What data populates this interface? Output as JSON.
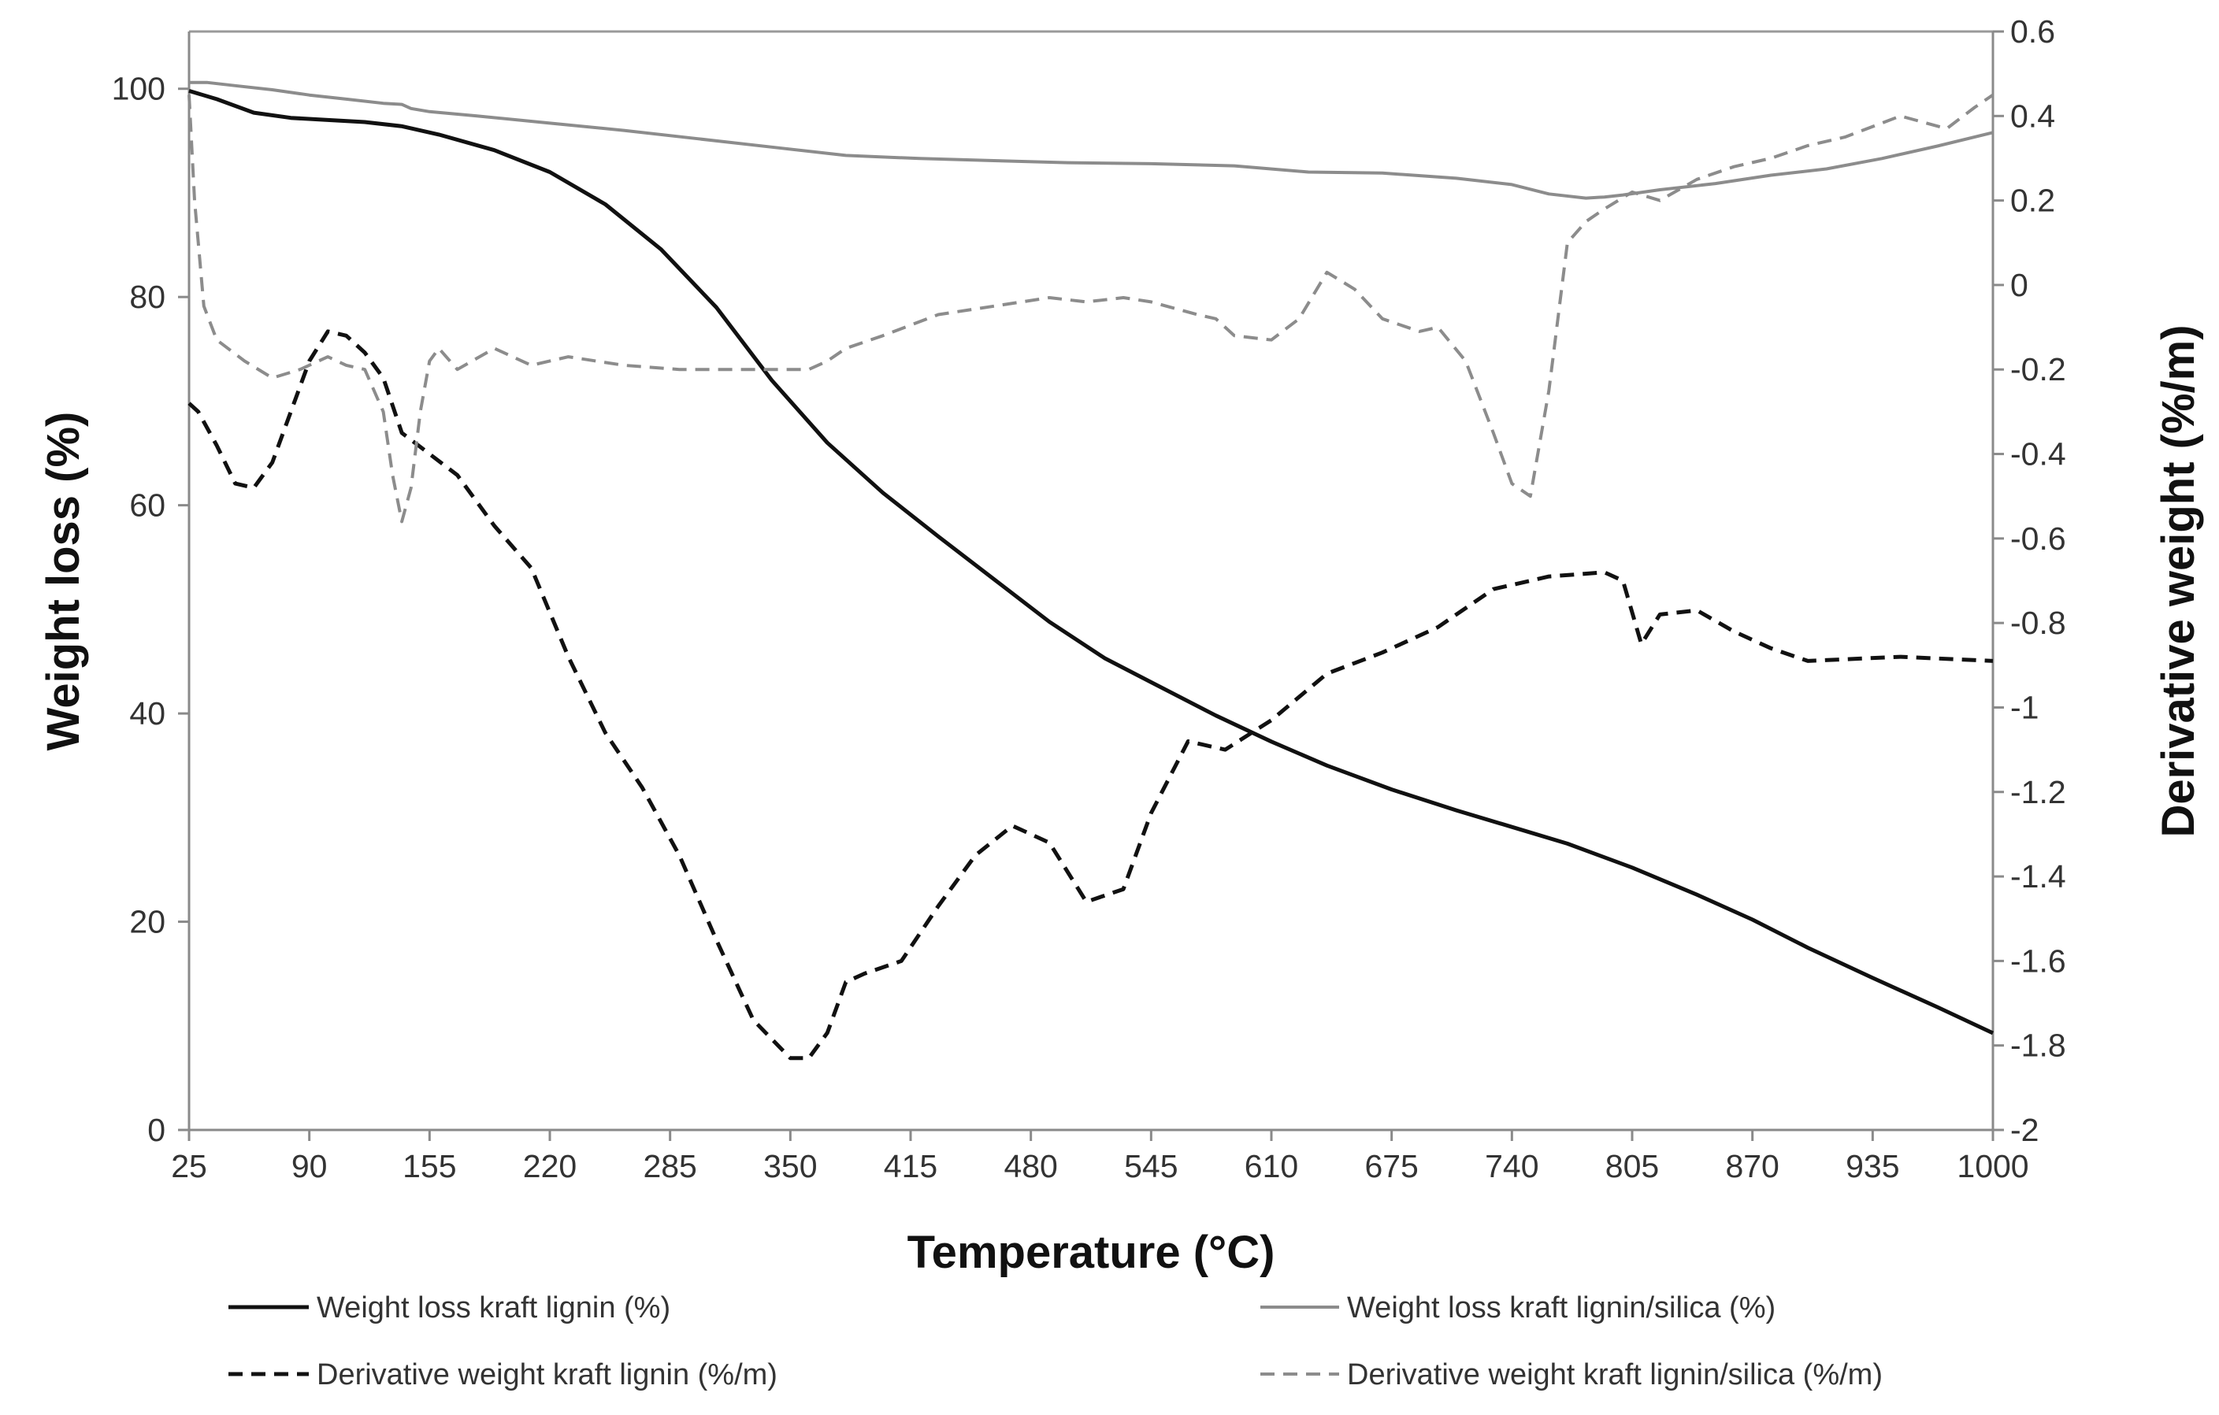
{
  "chart_data": {
    "type": "line",
    "title": "",
    "xlabel": "Temperature (°C)",
    "ylabel": "Weight loss (%)",
    "y2label": "Derivative weight (%/m)",
    "xlim": [
      25,
      1000
    ],
    "ylim": [
      0,
      105.5
    ],
    "y2lim": [
      -2,
      0.6
    ],
    "grid": false,
    "legend_position": "bottom",
    "x_ticks": [
      "25",
      "90",
      "155",
      "220",
      "285",
      "350",
      "415",
      "480",
      "545",
      "610",
      "675",
      "740",
      "805",
      "870",
      "935",
      "1000"
    ],
    "y_ticks": [
      "0",
      "20",
      "40",
      "60",
      "80",
      "100"
    ],
    "y2_ticks": [
      "-2",
      "-1.8",
      "-1.6",
      "-1.4",
      "-1.2",
      "-1",
      "-0.8",
      "-0.6",
      "-0.4",
      "-0.2",
      "0",
      "0.2",
      "0.4",
      "0.6"
    ],
    "series": [
      {
        "name": "Weight loss kraft lignin (%)",
        "axis": "left",
        "color": "#111111",
        "dash": "solid",
        "x": [
          25,
          40,
          60,
          80,
          100,
          120,
          140,
          160,
          190,
          220,
          250,
          280,
          310,
          340,
          370,
          400,
          430,
          460,
          490,
          520,
          545,
          580,
          610,
          640,
          675,
          710,
          740,
          770,
          805,
          840,
          870,
          900,
          935,
          970,
          1000
        ],
        "y": [
          99.8,
          99,
          97.7,
          97.2,
          97,
          96.8,
          96.4,
          95.6,
          94.1,
          92,
          88.9,
          84.6,
          79,
          72,
          66,
          61.2,
          57,
          52.9,
          48.8,
          45.3,
          43,
          39.8,
          37.3,
          35,
          32.7,
          30.7,
          29.1,
          27.5,
          25.2,
          22.6,
          20.2,
          17.5,
          14.6,
          11.8,
          9.3
        ]
      },
      {
        "name": "Weight loss kraft lignin/silica (%)",
        "axis": "left",
        "color": "#8c8c8c",
        "dash": "solid",
        "x": [
          25,
          35,
          50,
          70,
          90,
          110,
          130,
          140,
          145,
          155,
          180,
          220,
          260,
          300,
          340,
          380,
          420,
          460,
          500,
          545,
          590,
          630,
          670,
          710,
          740,
          760,
          780,
          790,
          800,
          820,
          850,
          880,
          910,
          940,
          970,
          1000
        ],
        "y": [
          100.6,
          100.6,
          100.3,
          99.9,
          99.4,
          99,
          98.6,
          98.5,
          98.1,
          97.8,
          97.4,
          96.7,
          96,
          95.2,
          94.4,
          93.6,
          93.3,
          93.1,
          92.9,
          92.8,
          92.6,
          92,
          91.9,
          91.4,
          90.8,
          89.9,
          89.5,
          89.6,
          89.8,
          90.3,
          90.9,
          91.7,
          92.3,
          93.3,
          94.5,
          95.8
        ]
      },
      {
        "name": "Derivative weight kraft lignin (%/m)",
        "axis": "right",
        "color": "#111111",
        "dash": "dashed",
        "x": [
          25,
          30,
          40,
          50,
          60,
          70,
          80,
          90,
          100,
          110,
          120,
          130,
          140,
          155,
          170,
          190,
          210,
          230,
          250,
          270,
          290,
          310,
          330,
          350,
          360,
          370,
          380,
          390,
          410,
          430,
          450,
          470,
          490,
          510,
          530,
          545,
          565,
          585,
          610,
          640,
          670,
          700,
          730,
          760,
          790,
          800,
          810,
          820,
          840,
          860,
          880,
          900,
          950,
          1000
        ],
        "y": [
          -0.28,
          -0.3,
          -0.38,
          -0.47,
          -0.48,
          -0.42,
          -0.3,
          -0.18,
          -0.11,
          -0.12,
          -0.16,
          -0.22,
          -0.35,
          -0.4,
          -0.45,
          -0.57,
          -0.67,
          -0.88,
          -1.06,
          -1.19,
          -1.35,
          -1.55,
          -1.74,
          -1.83,
          -1.83,
          -1.77,
          -1.65,
          -1.63,
          -1.6,
          -1.47,
          -1.35,
          -1.28,
          -1.32,
          -1.46,
          -1.43,
          -1.25,
          -1.08,
          -1.1,
          -1.03,
          -0.92,
          -0.87,
          -0.81,
          -0.72,
          -0.69,
          -0.68,
          -0.7,
          -0.85,
          -0.78,
          -0.77,
          -0.82,
          -0.86,
          -0.89,
          -0.88,
          -0.89
        ]
      },
      {
        "name": "Derivative weight kraft lignin/silica (%/m)",
        "axis": "right",
        "color": "#8c8c8c",
        "dash": "dashed",
        "x": [
          25,
          28,
          33,
          40,
          55,
          70,
          85,
          100,
          110,
          120,
          130,
          135,
          140,
          145,
          150,
          155,
          160,
          170,
          190,
          210,
          230,
          260,
          290,
          310,
          330,
          350,
          360,
          370,
          380,
          400,
          430,
          460,
          490,
          510,
          530,
          545,
          570,
          580,
          590,
          610,
          625,
          640,
          655,
          670,
          690,
          700,
          715,
          730,
          740,
          750,
          760,
          770,
          780,
          790,
          805,
          820,
          840,
          860,
          880,
          900,
          920,
          950,
          975,
          990,
          1000
        ],
        "y": [
          0.45,
          0.2,
          -0.05,
          -0.13,
          -0.18,
          -0.22,
          -0.2,
          -0.17,
          -0.19,
          -0.2,
          -0.3,
          -0.45,
          -0.56,
          -0.48,
          -0.3,
          -0.18,
          -0.15,
          -0.2,
          -0.15,
          -0.19,
          -0.17,
          -0.19,
          -0.2,
          -0.2,
          -0.2,
          -0.2,
          -0.2,
          -0.18,
          -0.15,
          -0.12,
          -0.07,
          -0.05,
          -0.03,
          -0.04,
          -0.03,
          -0.04,
          -0.07,
          -0.08,
          -0.12,
          -0.13,
          -0.08,
          0.03,
          -0.01,
          -0.08,
          -0.11,
          -0.1,
          -0.18,
          -0.35,
          -0.47,
          -0.5,
          -0.25,
          0.1,
          0.15,
          0.18,
          0.22,
          0.2,
          0.25,
          0.28,
          0.3,
          0.33,
          0.35,
          0.4,
          0.37,
          0.42,
          0.45
        ]
      }
    ]
  }
}
